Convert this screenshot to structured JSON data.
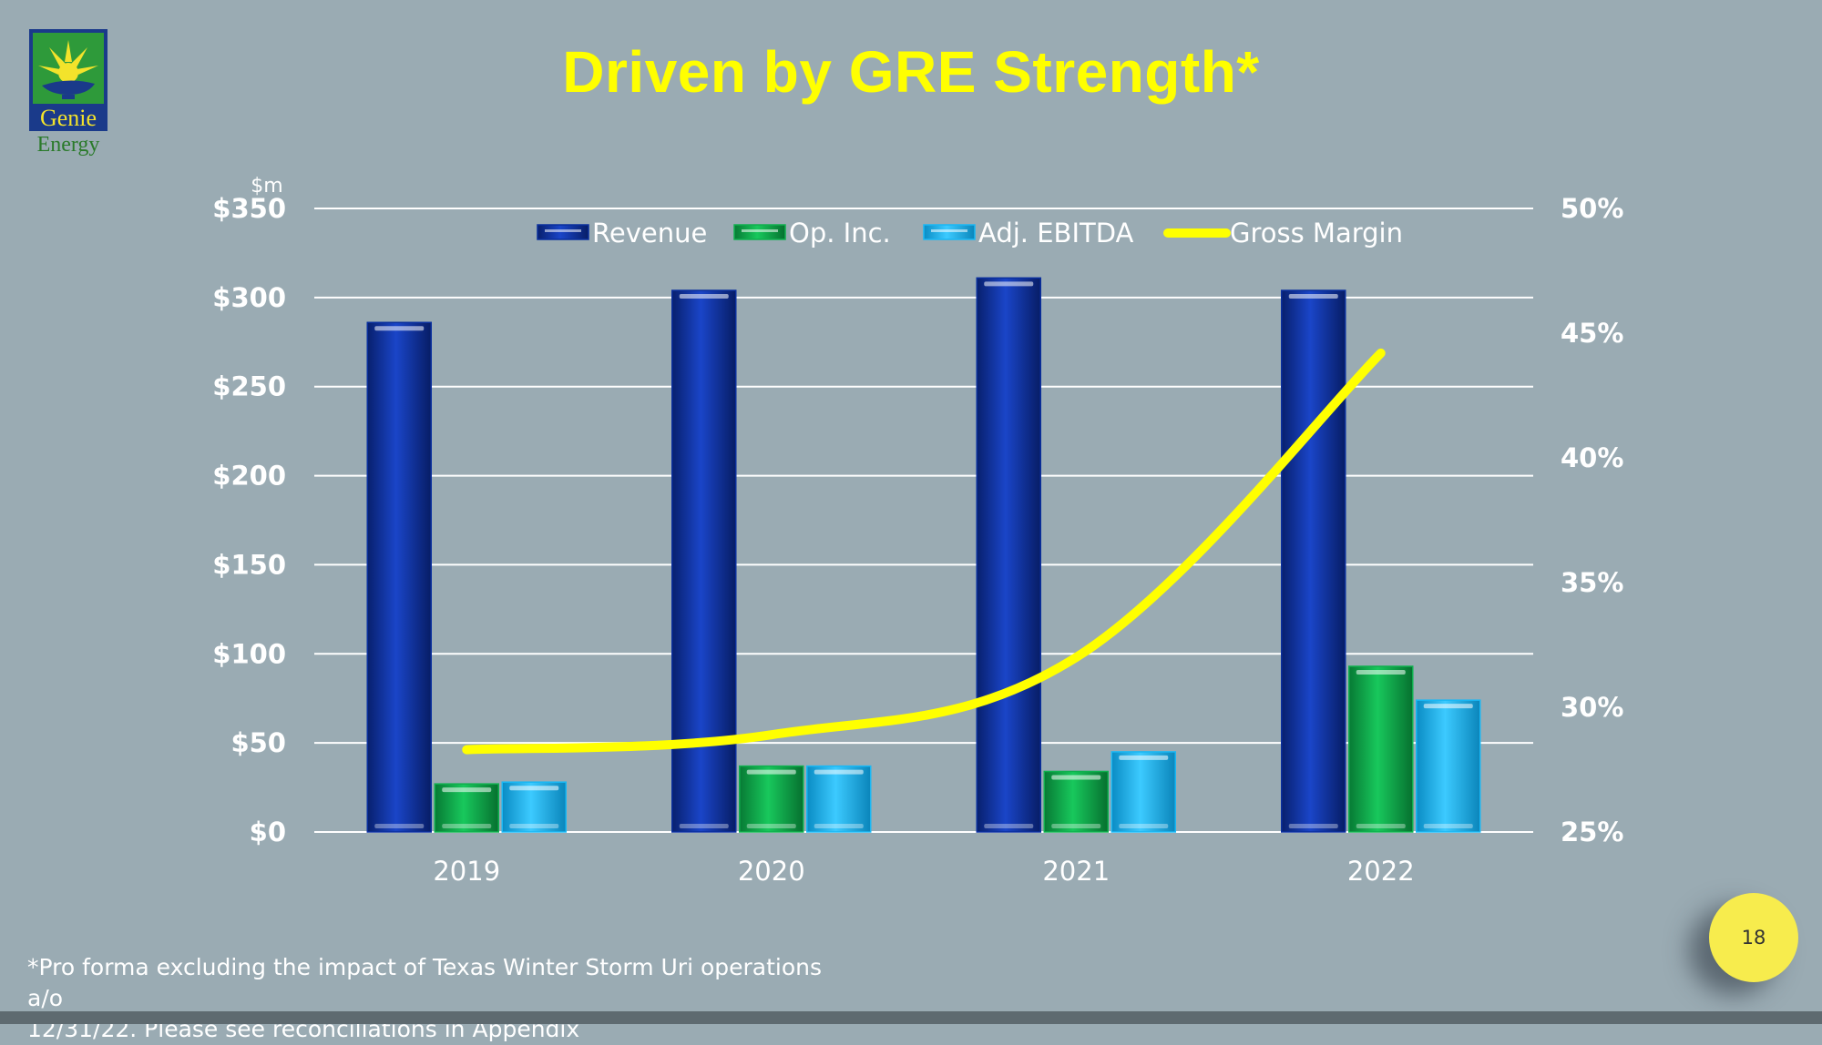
{
  "slide": {
    "title": "Driven by GRE Strength*",
    "footnote_line1": "*Pro forma excluding the impact of Texas Winter Storm Uri operations a/o",
    "footnote_line2": "12/31/22.  Please see reconciliations in Appendix",
    "page_number": "18"
  },
  "logo": {
    "line1": "Genie",
    "line2": "Energy"
  },
  "colors": {
    "revenue": "#0a2f9e",
    "op_inc": "#0fb04e",
    "adj_ebitda": "#19b8f5",
    "gross_margin": "#ffff00",
    "title": "#ffff00",
    "background": "#9aabb3"
  },
  "chart_data": {
    "type": "bar",
    "categories": [
      "2019",
      "2020",
      "2021",
      "2022"
    ],
    "series": [
      {
        "name": "Revenue",
        "values": [
          286,
          304,
          311,
          304
        ]
      },
      {
        "name": "Op. Inc.",
        "values": [
          27,
          37,
          34,
          93
        ]
      },
      {
        "name": "Adj. EBITDA",
        "values": [
          28,
          37,
          45,
          74
        ]
      }
    ],
    "line_series": {
      "name": "Gross Margin",
      "axis": "right",
      "values": [
        0.283,
        0.289,
        0.32,
        0.442
      ]
    },
    "ylabel": "$m",
    "ylim": [
      0,
      350
    ],
    "y_ticks": [
      "$0",
      "$50",
      "$100",
      "$150",
      "$200",
      "$250",
      "$300",
      "$350"
    ],
    "y2lim": [
      0.25,
      0.5
    ],
    "y2_ticks": [
      "25%",
      "30%",
      "35%",
      "40%",
      "45%",
      "50%"
    ],
    "grid": true,
    "legend_position": "top-center"
  }
}
